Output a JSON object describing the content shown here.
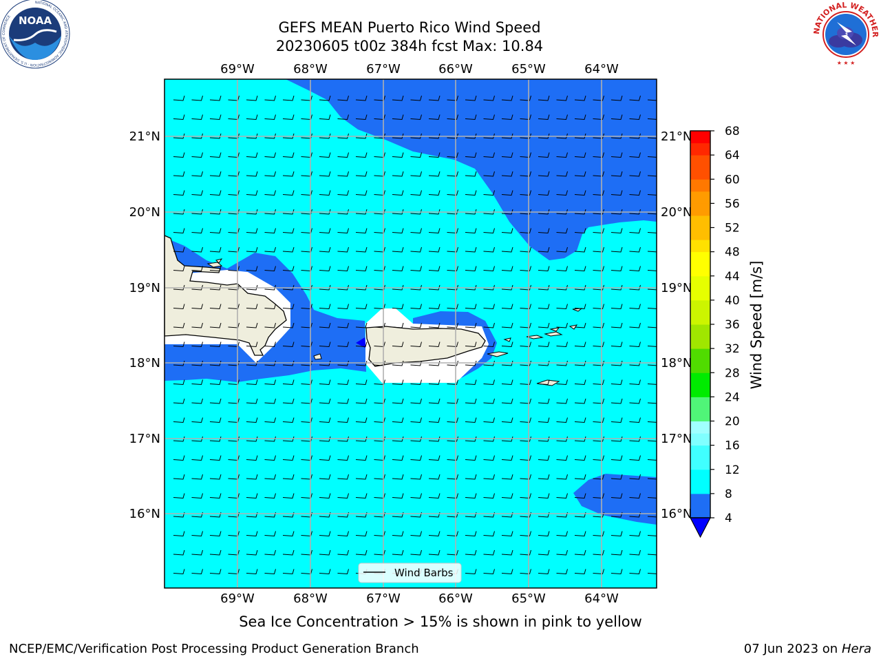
{
  "header": {
    "title_line1": "GEFS MEAN Puerto Rico Wind Speed",
    "title_line2": "20230605 t00z 384h fcst   Max: 10.84"
  },
  "logos": {
    "noaa": {
      "name": "noaa-logo",
      "text": "NOAA",
      "ring_text": "NATIONAL OCEANIC AND ATMOSPHERIC ADMINISTRATION · U.S. DEPARTMENT OF COMMERCE"
    },
    "nws": {
      "name": "nws-logo",
      "ring_text": "NATIONAL WEATHER SERVICE"
    }
  },
  "map": {
    "lon_labels": [
      "69°W",
      "68°W",
      "67°W",
      "66°W",
      "65°W",
      "64°W"
    ],
    "lat_labels": [
      "21°N",
      "20°N",
      "19°N",
      "18°N",
      "17°N",
      "16°N"
    ],
    "legend_label": "Wind Barbs"
  },
  "colorbar": {
    "label": "Wind Speed [m/s]",
    "ticks": [
      "68",
      "64",
      "60",
      "56",
      "52",
      "48",
      "44",
      "40",
      "36",
      "32",
      "28",
      "24",
      "20",
      "16",
      "12",
      "8",
      "4"
    ],
    "levels_low_to_high": [
      "#1E6EF5",
      "#00FFFF",
      "#40FFFF",
      "#80FFFF",
      "#A0FFFF",
      "#50F578",
      "#00EB00",
      "#50DC00",
      "#A0E600",
      "#CCF500",
      "#E6FF00",
      "#FFFF00",
      "#FFE100",
      "#FFBE00",
      "#FF9B00",
      "#FF7800",
      "#FF5000",
      "#FF2800",
      "#FF0000"
    ],
    "extend_color": "#0000FF"
  },
  "colors": {
    "calm_cyan": "#00FFFF",
    "band_4_8": "#1E6EF5",
    "land": "#EFEEDD",
    "grid": "#B0B0B0"
  },
  "footer": {
    "subnote": "Sea Ice Concentration > 15% is shown in pink to yellow",
    "branch": "NCEP/EMC/Verification Post Processing Product Generation Branch",
    "date": "07 Jun 2023 on",
    "host": "Hera"
  }
}
